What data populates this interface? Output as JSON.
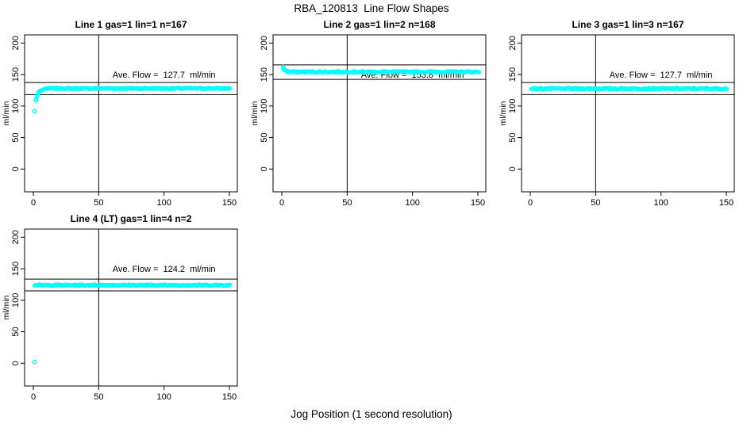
{
  "chart_data": {
    "type": "scatter",
    "title": "RBA_120813  Line Flow Shapes",
    "xlabel": "Jog Position (1 second resolution)",
    "ylabel": "ml/min",
    "marker": "open-circle",
    "marker_color": "#00FFFF",
    "axis_color": "#000000",
    "background": "#FFFFFF",
    "grid": false,
    "legend": false,
    "x_ticks": [
      0,
      50,
      100,
      150
    ],
    "y_ticks": [
      0,
      50,
      100,
      150,
      200
    ],
    "xlim": [
      -6.4,
      156.4
    ],
    "ylim": [
      -37,
      213
    ],
    "reference_vline_x": 50,
    "band_tolerance_pct": 7.5,
    "ave_text_pos": {
      "x": 100,
      "y": 150
    },
    "panels": [
      {
        "id": "line-1",
        "title": "Line 1 gas=1 lin=1 n=167",
        "n": 167,
        "ave_flow": 127.7,
        "ave_flow_label": "Ave. Flow =  127.7  ml/min",
        "band_lines": [
          118.1,
          137.3
        ],
        "transient_points": [
          [
            1,
            92
          ],
          [
            2,
            109
          ],
          [
            2,
            111
          ],
          [
            3,
            115
          ],
          [
            3,
            117.5
          ],
          [
            4,
            120
          ],
          [
            4,
            122
          ],
          [
            5,
            123.5
          ],
          [
            6,
            124.7
          ],
          [
            7,
            125.7
          ],
          [
            8,
            126.4
          ],
          [
            9,
            127.0
          ],
          [
            10,
            127.4
          ]
        ],
        "plateau": {
          "x_start": 10,
          "x_end": 151,
          "step": 0.9,
          "value": 128,
          "jitter": 1.0
        }
      },
      {
        "id": "line-2",
        "title": "Line 2 gas=1 lin=2 n=168",
        "n": 168,
        "ave_flow": 153.8,
        "ave_flow_label": "Ave. Flow =  153.8  ml/min",
        "band_lines": [
          142.3,
          165.3
        ],
        "transient_points": [
          [
            1,
            162
          ],
          [
            1,
            160
          ],
          [
            2,
            158.5
          ],
          [
            2,
            157
          ],
          [
            3,
            156
          ],
          [
            4,
            155.5
          ],
          [
            5,
            155
          ]
        ],
        "plateau": {
          "x_start": 5,
          "x_end": 151,
          "step": 0.9,
          "value": 154.2,
          "jitter": 1.0
        }
      },
      {
        "id": "line-3",
        "title": "Line 3 gas=1 lin=3 n=167",
        "n": 167,
        "ave_flow": 127.7,
        "ave_flow_label": "Ave. Flow =  127.7  ml/min",
        "band_lines": [
          118.1,
          137.3
        ],
        "transient_points": [],
        "plateau": {
          "x_start": 1,
          "x_end": 151,
          "step": 0.9,
          "value": 127.6,
          "jitter": 1.1
        }
      },
      {
        "id": "line-4",
        "title": "Line 4 (LT) gas=1 lin=4 n=2",
        "n": 2,
        "ave_flow": 124.2,
        "ave_flow_label": "Ave. Flow =  124.2  ml/min",
        "band_lines": [
          114.9,
          133.5
        ],
        "transient_points": [
          [
            1,
            2
          ]
        ],
        "plateau": {
          "x_start": 1,
          "x_end": 151,
          "step": 0.9,
          "value": 124,
          "jitter": 0.9
        }
      }
    ]
  }
}
